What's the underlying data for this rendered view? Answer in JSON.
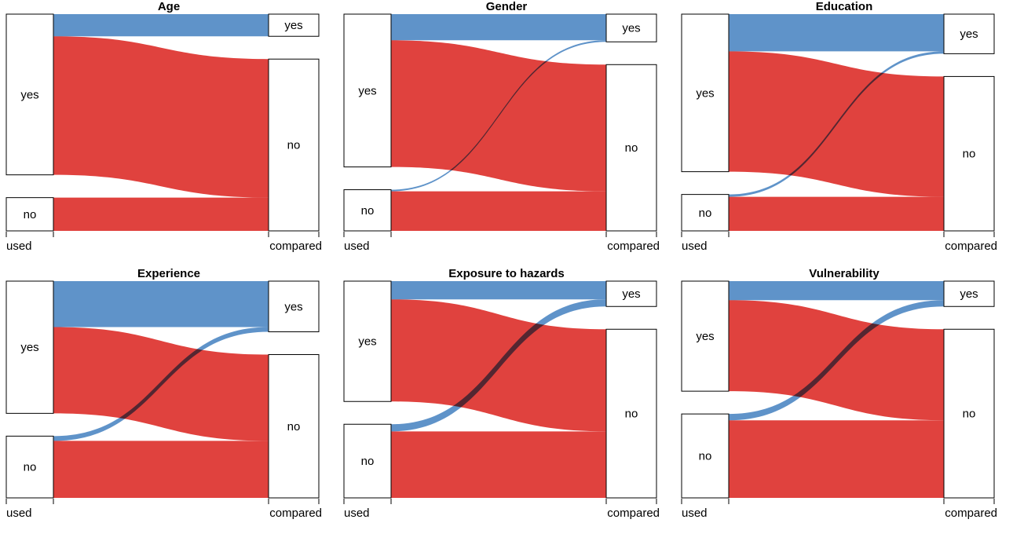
{
  "page": {
    "background": "#ffffff"
  },
  "chart_data": {
    "type": "alluvial",
    "description_layout": "2x3 grid of two-axis alluvial (sankey) diagrams, left axis 'used', right axis 'compared', nodes yes/no on each axis, blue flows end at 'yes', red flows end at 'no'",
    "axis_labels": [
      "used",
      "compared"
    ],
    "left_nodes": [
      "yes",
      "no"
    ],
    "right_nodes": [
      "yes",
      "no"
    ],
    "colors": {
      "flow_to_yes": "#5F93C9",
      "flow_to_no": "#E0423E",
      "node_fill": "#FFFFFF",
      "node_border": "#000000",
      "text": "#000000"
    },
    "flow_units": "relative frequency (estimated from pixels, per-panel sum = 245)",
    "panels": [
      {
        "title": "Age",
        "flows": {
          "yes_yes": 28,
          "yes_no": 175,
          "no_yes": 0,
          "no_no": 42
        }
      },
      {
        "title": "Gender",
        "flows": {
          "yes_yes": 33,
          "yes_no": 160,
          "no_yes": 2,
          "no_no": 50
        }
      },
      {
        "title": "Education",
        "flows": {
          "yes_yes": 47,
          "yes_no": 152,
          "no_yes": 3,
          "no_no": 43
        }
      },
      {
        "title": "Experience",
        "flows": {
          "yes_yes": 58,
          "yes_no": 109,
          "no_yes": 6,
          "no_no": 72
        }
      },
      {
        "title": "Exposure to hazards",
        "flows": {
          "yes_yes": 23,
          "yes_no": 129,
          "no_yes": 9,
          "no_no": 84
        }
      },
      {
        "title": "Vulnerability",
        "flows": {
          "yes_yes": 24,
          "yes_no": 115,
          "no_yes": 8,
          "no_no": 98
        }
      }
    ]
  }
}
